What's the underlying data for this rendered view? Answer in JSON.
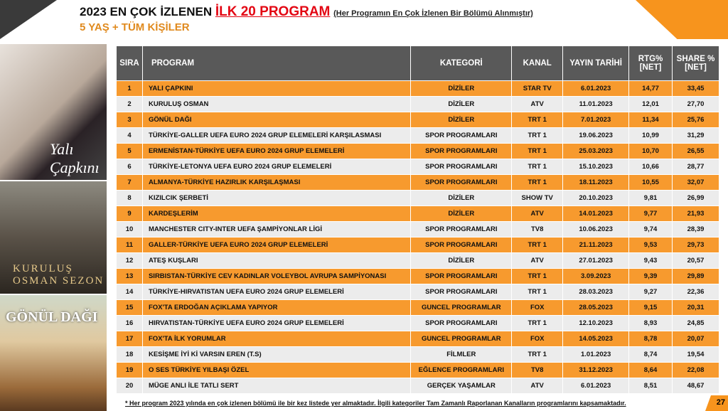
{
  "header": {
    "title": "2023 EN ÇOK İZLENEN",
    "title_highlight": "İLK 20 PROGRAM",
    "title_note": "(Her Programın En Çok İzlenen Bir Bölümü Alınmıştır)",
    "subtitle": "5 YAŞ + TÜM KİŞİLER"
  },
  "posters": [
    {
      "logo": "Yalı Çapkını"
    },
    {
      "logo": "KURULUŞ OSMAN SEZON"
    },
    {
      "logo": "GÖNÜL DAĞI"
    }
  ],
  "colors": {
    "accent": "#f7941d",
    "row_highlight": "#f79a2e",
    "header_bg": "#595959",
    "title_red": "#e30613"
  },
  "table": {
    "columns": [
      "SIRA",
      "PROGRAM",
      "KATEGORİ",
      "KANAL",
      "YAYIN TARİHİ",
      "RTG% [NET]",
      "SHARE % [NET]"
    ],
    "rows": [
      [
        "1",
        "YALI ÇAPKINI",
        "DİZİLER",
        "STAR TV",
        "6.01.2023",
        "14,77",
        "33,45"
      ],
      [
        "2",
        "KURULUŞ OSMAN",
        "DİZİLER",
        "ATV",
        "11.01.2023",
        "12,01",
        "27,70"
      ],
      [
        "3",
        "GÖNÜL DAĞI",
        "DİZİLER",
        "TRT 1",
        "7.01.2023",
        "11,34",
        "25,76"
      ],
      [
        "4",
        "TÜRKİYE-GALLER UEFA EURO 2024 GRUP ELEMELERİ KARŞILASMASI",
        "SPOR PROGRAMLARI",
        "TRT 1",
        "19.06.2023",
        "10,99",
        "31,29"
      ],
      [
        "5",
        "ERMENİSTAN-TÜRKİYE UEFA EURO 2024 GRUP ELEMELERİ",
        "SPOR PROGRAMLARI",
        "TRT 1",
        "25.03.2023",
        "10,70",
        "26,55"
      ],
      [
        "6",
        "TÜRKİYE-LETONYA UEFA EURO 2024 GRUP ELEMELERİ",
        "SPOR PROGRAMLARI",
        "TRT 1",
        "15.10.2023",
        "10,66",
        "28,77"
      ],
      [
        "7",
        "ALMANYA-TÜRKİYE HAZIRLIK KARŞILAŞMASI",
        "SPOR PROGRAMLARI",
        "TRT 1",
        "18.11.2023",
        "10,55",
        "32,07"
      ],
      [
        "8",
        "KIZILCIK ŞERBETİ",
        "DİZİLER",
        "SHOW TV",
        "20.10.2023",
        "9,81",
        "26,99"
      ],
      [
        "9",
        "KARDEŞLERİM",
        "DİZİLER",
        "ATV",
        "14.01.2023",
        "9,77",
        "21,93"
      ],
      [
        "10",
        "MANCHESTER CITY-INTER UEFA ŞAMPİYONLAR LİGİ",
        "SPOR PROGRAMLARI",
        "TV8",
        "10.06.2023",
        "9,74",
        "28,39"
      ],
      [
        "11",
        "GALLER-TÜRKİYE UEFA EURO 2024 GRUP ELEMELERİ",
        "SPOR PROGRAMLARI",
        "TRT 1",
        "21.11.2023",
        "9,53",
        "29,73"
      ],
      [
        "12",
        "ATEŞ KUŞLARI",
        "DİZİLER",
        "ATV",
        "27.01.2023",
        "9,43",
        "20,57"
      ],
      [
        "13",
        "SIRBISTAN-TÜRKİYE CEV KADINLAR VOLEYBOL AVRUPA SAMPİYONASI",
        "SPOR PROGRAMLARI",
        "TRT 1",
        "3.09.2023",
        "9,39",
        "29,89"
      ],
      [
        "14",
        "TÜRKİYE-HIRVATISTAN UEFA EURO 2024 GRUP ELEMELERİ",
        "SPOR PROGRAMLARI",
        "TRT 1",
        "28.03.2023",
        "9,27",
        "22,36"
      ],
      [
        "15",
        "FOX'TA ERDOĞAN AÇIKLAMA YAPIYOR",
        "GUNCEL PROGRAMLAR",
        "FOX",
        "28.05.2023",
        "9,15",
        "20,31"
      ],
      [
        "16",
        "HIRVATISTAN-TÜRKİYE UEFA EURO 2024 GRUP ELEMELERİ",
        "SPOR PROGRAMLARI",
        "TRT 1",
        "12.10.2023",
        "8,93",
        "24,85"
      ],
      [
        "17",
        "FOX'TA İLK YORUMLAR",
        "GUNCEL PROGRAMLAR",
        "FOX",
        "14.05.2023",
        "8,78",
        "20,07"
      ],
      [
        "18",
        "KESİŞME İYİ Kİ VARSIN EREN (T.S)",
        "FİLMLER",
        "TRT 1",
        "1.01.2023",
        "8,74",
        "19,54"
      ],
      [
        "19",
        "O SES TÜRKİYE YILBAŞI ÖZEL",
        "EĞLENCE PROGRAMLARI",
        "TV8",
        "31.12.2023",
        "8,64",
        "22,08"
      ],
      [
        "20",
        "MÜGE ANLI İLE TATLI SERT",
        "GERÇEK YAŞAMLAR",
        "ATV",
        "6.01.2023",
        "8,51",
        "48,67"
      ]
    ]
  },
  "footer": {
    "note": "* Her program 2023 yılında en çok izlenen bölümü ile bir kez listede yer almaktadır. İlgili kategoriler Tam Zamanlı Raporlanan Kanalların programlarını kapsamaktadır.",
    "page": "27"
  }
}
